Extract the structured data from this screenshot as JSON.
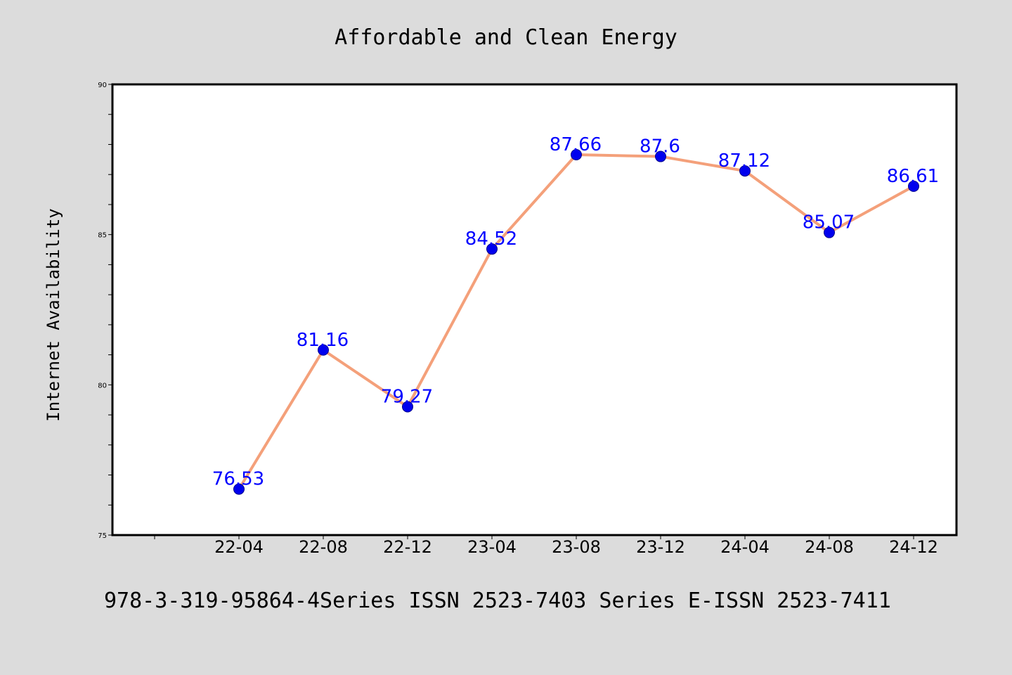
{
  "figure": {
    "title": "Affordable and Clean Energy",
    "footer": "978-3-319-95864-4Series ISSN 2523-7403 Series E-ISSN 2523-7411"
  },
  "chart_data": {
    "type": "line",
    "title": "Affordable and Clean Energy",
    "xlabel": "",
    "ylabel": "Internet Availability",
    "x": [
      "22-04",
      "22-08",
      "22-12",
      "23-04",
      "23-08",
      "23-12",
      "24-04",
      "24-08",
      "24-12"
    ],
    "series": [
      {
        "values": [
          76.53,
          81.16,
          79.27,
          84.52,
          87.66,
          87.6,
          87.12,
          85.07,
          86.61
        ]
      }
    ],
    "data_labels": [
      "76.53",
      "81.16",
      "79.27",
      "84.52",
      "87.66",
      "87.6",
      "87.12",
      "85.07",
      "86.61"
    ],
    "ylim": [
      75,
      90
    ],
    "y_major_ticks": [
      75,
      80,
      85,
      90
    ],
    "y_minor_step": 1,
    "grid": false,
    "legend": "none",
    "colors": {
      "line": "#f4a07a",
      "marker": "#0000ee",
      "marker_edge": "#00008b",
      "data_label": "#0000ff",
      "plot_background": "#ffffff",
      "figure_background": "#dcdcdc"
    }
  }
}
